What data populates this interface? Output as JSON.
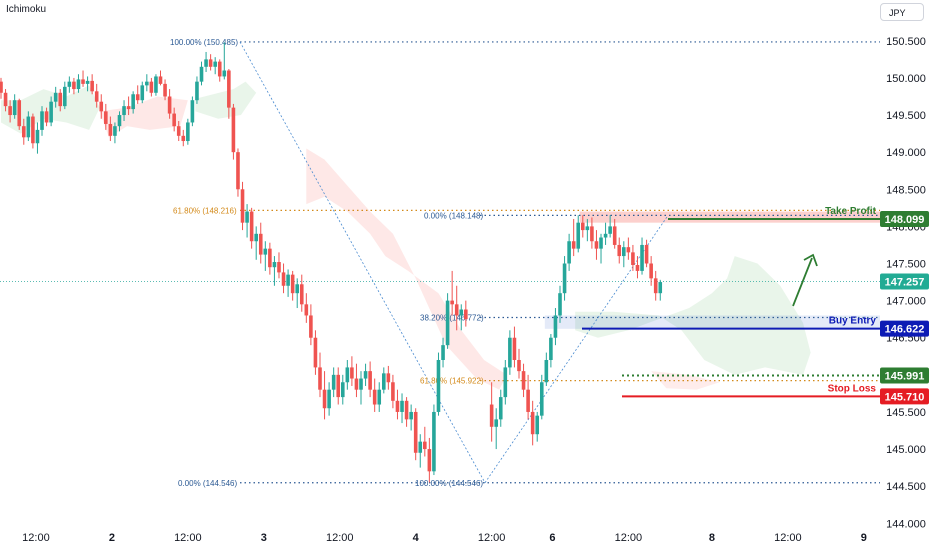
{
  "header": {
    "indicator": "Ichimoku",
    "currency": "JPY"
  },
  "chart_data": {
    "type": "candlestick",
    "y_ticks": [
      144.0,
      144.5,
      145.0,
      145.5,
      146.0,
      146.5,
      147.0,
      147.5,
      148.0,
      148.5,
      149.0,
      149.5,
      150.0,
      150.5
    ],
    "y_tick_labels": [
      "144.000",
      "144.500",
      "145.000",
      "145.500",
      "146.000",
      "146.500",
      "147.000",
      "147.500",
      "148.000",
      "148.500",
      "149.000",
      "149.500",
      "150.000",
      "150.500"
    ],
    "ylim": [
      143.95,
      151.05
    ],
    "x_labels": [
      {
        "label": "12:00",
        "x": 0.5
      },
      {
        "label": "2",
        "x": 1.0
      },
      {
        "label": "12:00",
        "x": 1.5
      },
      {
        "label": "3",
        "x": 2.0
      },
      {
        "label": "12:00",
        "x": 2.5
      },
      {
        "label": "4",
        "x": 3.0
      },
      {
        "label": "12:00",
        "x": 3.5
      },
      {
        "label": "6",
        "x": 3.9
      },
      {
        "label": "12:00",
        "x": 4.4
      },
      {
        "label": "8",
        "x": 4.95
      },
      {
        "label": "12:00",
        "x": 5.45
      },
      {
        "label": "9",
        "x": 5.95
      }
    ],
    "xlim": [
      0.27,
      6.05
    ],
    "candles": [
      [
        0.27,
        149.95,
        150.0,
        149.72,
        149.8
      ],
      [
        0.3,
        149.8,
        149.85,
        149.55,
        149.62
      ],
      [
        0.33,
        149.62,
        149.7,
        149.4,
        149.5
      ],
      [
        0.36,
        149.5,
        149.78,
        149.45,
        149.7
      ],
      [
        0.39,
        149.7,
        149.72,
        149.3,
        149.35
      ],
      [
        0.42,
        149.35,
        149.45,
        149.1,
        149.2
      ],
      [
        0.45,
        149.2,
        149.55,
        149.15,
        149.48
      ],
      [
        0.48,
        149.48,
        149.52,
        149.05,
        149.12
      ],
      [
        0.51,
        149.12,
        149.4,
        148.98,
        149.3
      ],
      [
        0.54,
        149.3,
        149.62,
        149.22,
        149.55
      ],
      [
        0.57,
        149.55,
        149.6,
        149.35,
        149.4
      ],
      [
        0.6,
        149.4,
        149.75,
        149.35,
        149.68
      ],
      [
        0.63,
        149.68,
        149.88,
        149.6,
        149.8
      ],
      [
        0.66,
        149.8,
        149.85,
        149.55,
        149.62
      ],
      [
        0.69,
        149.62,
        149.95,
        149.58,
        149.88
      ],
      [
        0.72,
        149.88,
        150.02,
        149.8,
        149.95
      ],
      [
        0.75,
        149.95,
        150.0,
        149.78,
        149.85
      ],
      [
        0.78,
        149.85,
        150.05,
        149.8,
        149.98
      ],
      [
        0.81,
        149.98,
        150.1,
        149.88,
        149.92
      ],
      [
        0.84,
        149.92,
        150.02,
        149.82,
        149.96
      ],
      [
        0.87,
        149.96,
        150.05,
        149.78,
        149.82
      ],
      [
        0.9,
        149.82,
        149.92,
        149.6,
        149.68
      ],
      [
        0.93,
        149.68,
        149.78,
        149.45,
        149.55
      ],
      [
        0.96,
        149.55,
        149.65,
        149.3,
        149.38
      ],
      [
        0.99,
        149.38,
        149.48,
        149.15,
        149.22
      ],
      [
        1.02,
        149.22,
        149.4,
        149.12,
        149.35
      ],
      [
        1.05,
        149.35,
        149.55,
        149.28,
        149.5
      ],
      [
        1.08,
        149.5,
        149.7,
        149.42,
        149.62
      ],
      [
        1.11,
        149.62,
        149.75,
        149.5,
        149.58
      ],
      [
        1.14,
        149.58,
        149.82,
        149.52,
        149.78
      ],
      [
        1.17,
        149.78,
        149.9,
        149.65,
        149.7
      ],
      [
        1.2,
        149.7,
        149.95,
        149.66,
        149.9
      ],
      [
        1.23,
        149.9,
        150.05,
        149.82,
        149.95
      ],
      [
        1.26,
        149.95,
        150.0,
        149.75,
        149.8
      ],
      [
        1.29,
        149.8,
        150.05,
        149.76,
        150.02
      ],
      [
        1.32,
        150.02,
        150.1,
        149.9,
        149.92
      ],
      [
        1.35,
        149.92,
        149.98,
        149.7,
        149.75
      ],
      [
        1.38,
        149.75,
        149.85,
        149.45,
        149.52
      ],
      [
        1.41,
        149.52,
        149.6,
        149.28,
        149.35
      ],
      [
        1.44,
        149.35,
        149.42,
        149.15,
        149.22
      ],
      [
        1.47,
        149.22,
        149.3,
        149.08,
        149.15
      ],
      [
        1.5,
        149.15,
        149.45,
        149.1,
        149.4
      ],
      [
        1.53,
        149.4,
        149.75,
        149.35,
        149.7
      ],
      [
        1.56,
        149.7,
        150.02,
        149.65,
        149.95
      ],
      [
        1.59,
        149.95,
        150.22,
        149.9,
        150.15
      ],
      [
        1.62,
        150.15,
        150.35,
        150.08,
        150.25
      ],
      [
        1.65,
        150.25,
        150.32,
        150.1,
        150.15
      ],
      [
        1.68,
        150.15,
        150.28,
        150.05,
        150.22
      ],
      [
        1.71,
        150.22,
        150.25,
        149.95,
        150.02
      ],
      [
        1.74,
        150.02,
        150.48,
        149.98,
        150.1
      ],
      [
        1.77,
        150.1,
        150.12,
        149.45,
        149.6
      ],
      [
        1.8,
        149.6,
        149.65,
        148.9,
        149.0
      ],
      [
        1.83,
        149.0,
        149.05,
        148.4,
        148.5
      ],
      [
        1.86,
        148.5,
        148.6,
        147.95,
        148.05
      ],
      [
        1.89,
        148.05,
        148.3,
        147.85,
        148.2
      ],
      [
        1.92,
        148.2,
        148.25,
        147.7,
        147.8
      ],
      [
        1.95,
        147.8,
        148.0,
        147.55,
        147.9
      ],
      [
        1.98,
        147.9,
        148.05,
        147.5,
        147.62
      ],
      [
        2.01,
        147.62,
        147.8,
        147.4,
        147.7
      ],
      [
        2.04,
        147.7,
        147.78,
        147.35,
        147.45
      ],
      [
        2.07,
        147.45,
        147.6,
        147.2,
        147.52
      ],
      [
        2.1,
        147.52,
        147.65,
        147.3,
        147.38
      ],
      [
        2.13,
        147.38,
        147.5,
        147.1,
        147.2
      ],
      [
        2.16,
        147.2,
        147.42,
        147.05,
        147.35
      ],
      [
        2.19,
        147.35,
        147.4,
        147.0,
        147.1
      ],
      [
        2.22,
        147.1,
        147.3,
        146.9,
        147.22
      ],
      [
        2.25,
        147.22,
        147.35,
        146.85,
        146.95
      ],
      [
        2.28,
        146.95,
        147.1,
        146.7,
        146.8
      ],
      [
        2.31,
        146.8,
        146.95,
        146.4,
        146.5
      ],
      [
        2.34,
        146.5,
        146.6,
        146.0,
        146.1
      ],
      [
        2.37,
        146.1,
        146.3,
        145.7,
        145.8
      ],
      [
        2.4,
        145.8,
        146.05,
        145.4,
        145.55
      ],
      [
        2.43,
        145.55,
        145.9,
        145.45,
        145.8
      ],
      [
        2.46,
        145.8,
        146.1,
        145.7,
        146.0
      ],
      [
        2.49,
        146.0,
        146.1,
        145.6,
        145.7
      ],
      [
        2.52,
        145.7,
        146.0,
        145.6,
        145.9
      ],
      [
        2.55,
        145.9,
        146.2,
        145.8,
        146.1
      ],
      [
        2.58,
        146.1,
        146.25,
        145.85,
        145.95
      ],
      [
        2.61,
        145.95,
        146.15,
        145.7,
        145.8
      ],
      [
        2.64,
        145.8,
        146.05,
        145.6,
        145.95
      ],
      [
        2.67,
        145.95,
        146.15,
        145.85,
        146.05
      ],
      [
        2.7,
        146.05,
        146.18,
        145.7,
        145.8
      ],
      [
        2.73,
        145.8,
        145.95,
        145.5,
        145.6
      ],
      [
        2.76,
        145.6,
        145.9,
        145.5,
        145.8
      ],
      [
        2.79,
        145.8,
        146.1,
        145.75,
        146.02
      ],
      [
        2.82,
        146.02,
        146.12,
        145.8,
        145.9
      ],
      [
        2.85,
        145.9,
        146.0,
        145.55,
        145.65
      ],
      [
        2.88,
        145.65,
        145.8,
        145.4,
        145.5
      ],
      [
        2.91,
        145.5,
        145.75,
        145.35,
        145.65
      ],
      [
        2.94,
        145.65,
        145.7,
        145.3,
        145.4
      ],
      [
        2.97,
        145.4,
        145.6,
        145.25,
        145.5
      ],
      [
        3.0,
        145.5,
        145.55,
        144.85,
        144.95
      ],
      [
        3.03,
        144.95,
        145.2,
        144.75,
        145.1
      ],
      [
        3.06,
        145.1,
        145.3,
        144.9,
        145.0
      ],
      [
        3.09,
        145.0,
        145.15,
        144.55,
        144.7
      ],
      [
        3.12,
        144.7,
        145.6,
        144.65,
        145.5
      ],
      [
        3.15,
        145.5,
        146.3,
        145.45,
        146.2
      ],
      [
        3.18,
        146.2,
        146.5,
        146.1,
        146.4
      ],
      [
        3.21,
        146.4,
        147.1,
        146.35,
        147.0
      ],
      [
        3.24,
        147.0,
        147.4,
        146.8,
        146.95
      ],
      [
        3.27,
        146.95,
        147.2,
        146.6,
        146.8
      ],
      [
        3.3,
        146.8,
        146.95,
        146.6,
        146.88
      ],
      [
        3.33,
        146.88,
        147.0,
        146.65,
        146.75
      ],
      [
        3.5,
        145.6,
        145.9,
        145.1,
        145.3
      ],
      [
        3.53,
        145.3,
        145.55,
        145.0,
        145.4
      ],
      [
        3.56,
        145.4,
        145.8,
        145.3,
        145.7
      ],
      [
        3.59,
        145.7,
        146.2,
        145.6,
        146.1
      ],
      [
        3.62,
        146.1,
        146.6,
        146.0,
        146.5
      ],
      [
        3.65,
        146.5,
        146.65,
        146.1,
        146.2
      ],
      [
        3.68,
        146.2,
        146.35,
        145.95,
        146.05
      ],
      [
        3.71,
        146.05,
        146.15,
        145.7,
        145.8
      ],
      [
        3.74,
        145.8,
        146.0,
        145.4,
        145.5
      ],
      [
        3.77,
        145.5,
        145.65,
        145.05,
        145.2
      ],
      [
        3.8,
        145.2,
        145.5,
        145.1,
        145.45
      ],
      [
        3.83,
        145.45,
        146.0,
        145.4,
        145.9
      ],
      [
        3.86,
        145.9,
        146.3,
        145.85,
        146.2
      ],
      [
        3.89,
        146.2,
        146.55,
        146.1,
        146.5
      ],
      [
        3.92,
        146.5,
        146.9,
        146.4,
        146.8
      ],
      [
        3.95,
        146.8,
        147.2,
        146.7,
        147.1
      ],
      [
        3.98,
        147.1,
        147.6,
        147.0,
        147.5
      ],
      [
        4.01,
        147.5,
        147.9,
        147.4,
        147.8
      ],
      [
        4.04,
        147.8,
        148.1,
        147.6,
        147.7
      ],
      [
        4.07,
        147.7,
        148.15,
        147.65,
        148.05
      ],
      [
        4.1,
        148.05,
        148.15,
        147.85,
        147.95
      ],
      [
        4.13,
        147.95,
        148.1,
        147.8,
        148.0
      ],
      [
        4.16,
        148.0,
        148.12,
        147.7,
        147.8
      ],
      [
        4.19,
        147.8,
        147.95,
        147.55,
        147.7
      ],
      [
        4.22,
        147.7,
        147.9,
        147.5,
        147.85
      ],
      [
        4.25,
        147.85,
        148.05,
        147.75,
        147.9
      ],
      [
        4.28,
        147.9,
        148.15,
        147.85,
        148.0
      ],
      [
        4.31,
        148.0,
        148.1,
        147.7,
        147.75
      ],
      [
        4.34,
        147.75,
        147.85,
        147.5,
        147.6
      ],
      [
        4.37,
        147.6,
        147.8,
        147.45,
        147.72
      ],
      [
        4.4,
        147.72,
        147.85,
        147.55,
        147.65
      ],
      [
        4.43,
        147.65,
        147.75,
        147.4,
        147.48
      ],
      [
        4.46,
        147.48,
        147.6,
        147.3,
        147.4
      ],
      [
        4.49,
        147.4,
        147.85,
        147.35,
        147.75
      ],
      [
        4.52,
        147.75,
        147.82,
        147.45,
        147.5
      ],
      [
        4.55,
        147.5,
        147.6,
        147.2,
        147.3
      ],
      [
        4.58,
        147.3,
        147.4,
        147.0,
        147.1
      ],
      [
        4.61,
        147.1,
        147.28,
        147.0,
        147.25
      ]
    ],
    "fib_labels": [
      {
        "text": "100.00% (150.485)",
        "price": 150.485
      },
      {
        "text": "61.80% (148.216)",
        "price": 148.216
      },
      {
        "text": "0.00% (144.546)",
        "price": 144.546
      },
      {
        "text": "0.00% (148.148)",
        "price": 148.148
      },
      {
        "text": "38.20% (146.772)",
        "price": 146.772
      },
      {
        "text": "61.80% (145.922)",
        "price": 145.922
      },
      {
        "text": "100.00% (144.546)",
        "price": 144.546
      }
    ],
    "annotations": [
      {
        "text": "Take Profit",
        "price": 148.099
      },
      {
        "text": "Buy Entry",
        "price": 146.622
      },
      {
        "text": "Stop Loss",
        "price": 145.71
      }
    ],
    "price_labels": [
      {
        "text": "148.099",
        "price": 148.099,
        "color": "#2e7d32"
      },
      {
        "text": "147.257",
        "price": 147.257,
        "color": "#22ab94"
      },
      {
        "text": "146.622",
        "price": 146.622,
        "color": "#0d1bb5"
      },
      {
        "text": "145.991",
        "price": 145.991,
        "color": "#2e7d32"
      },
      {
        "text": "145.710",
        "price": 145.71,
        "color": "#e51c23"
      }
    ],
    "colors": {
      "up": "#26a69a",
      "down": "#ef5350",
      "take_profit": "#2e7d32",
      "buy_entry": "#0d1bb5",
      "stop_loss": "#e51c23",
      "fib_blue": "#4a8bd0",
      "fib_orange": "#d38a1a"
    }
  }
}
